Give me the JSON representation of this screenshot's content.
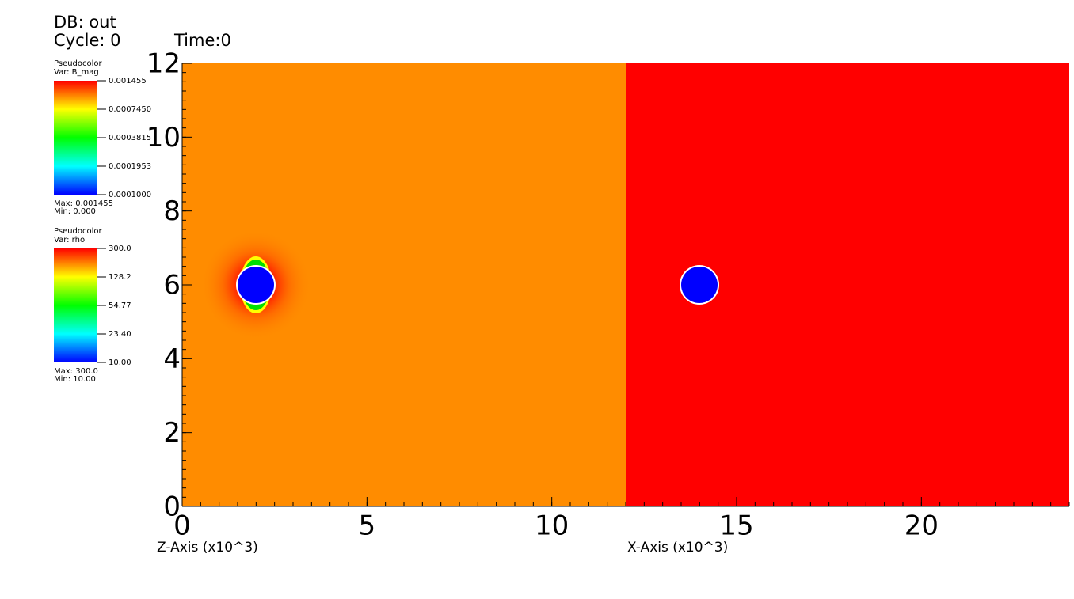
{
  "header": {
    "db": "DB: out",
    "cycle": "Cycle: 0",
    "time": "Time:0"
  },
  "legends": [
    {
      "plot": "Pseudocolor",
      "var": "Var: B_mag",
      "ticks": [
        "0.001455",
        "0.0007450",
        "0.0003815",
        "0.0001953",
        "0.0001000"
      ],
      "max": "Max:  0.001455",
      "min": "Min:  0.000"
    },
    {
      "plot": "Pseudocolor",
      "var": "Var: rho",
      "ticks": [
        "300.0",
        "128.2",
        "54.77",
        "23.40",
        "10.00"
      ],
      "max": "Max:  300.0",
      "min": "Min:  10.00"
    }
  ],
  "axes": {
    "x": {
      "lim": [
        0,
        24
      ],
      "ticks": [
        0,
        5,
        10,
        15,
        20
      ]
    },
    "y": {
      "lim": [
        0,
        12
      ],
      "ticks": [
        0,
        2,
        4,
        6,
        8,
        10,
        12
      ]
    },
    "z_title": "Z-Axis (x10^3)",
    "x_title": "X-Axis (x10^3)"
  }
}
